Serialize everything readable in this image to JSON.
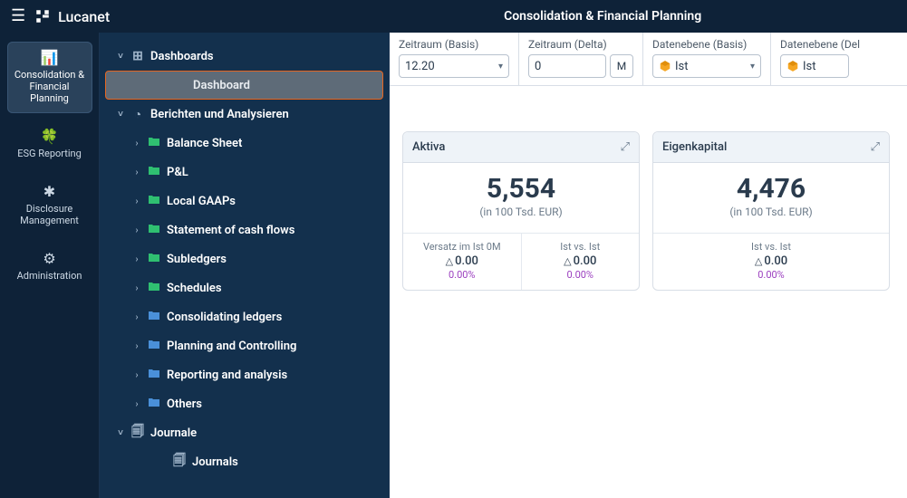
{
  "header": {
    "brand": "Lucanet",
    "title": "Consolidation & Financial Planning"
  },
  "rail": {
    "items": [
      {
        "label": "Consolidation & Financial Planning",
        "icon": "📊",
        "icon_name": "chart-bar-icon",
        "active": true
      },
      {
        "label": "ESG Reporting",
        "icon": "🍀",
        "icon_name": "leaf-icon",
        "active": false
      },
      {
        "label": "Disclosure Management",
        "icon": "✱",
        "icon_name": "asterisk-icon",
        "active": false
      },
      {
        "label": "Administration",
        "icon": "⚙",
        "icon_name": "gear-icon",
        "active": false
      }
    ]
  },
  "tree": {
    "nodes": [
      {
        "label": "Dashboards",
        "level": 0,
        "toggle": "down",
        "icon": "⊞",
        "icon_name": "grid-icon",
        "color": "muted"
      },
      {
        "label": "Dashboard",
        "level": 2,
        "toggle": "",
        "icon": "",
        "selected": true
      },
      {
        "label": "Berichten und Analysieren",
        "level": 0,
        "toggle": "down",
        "icon": "◔",
        "icon_name": "pie-icon",
        "color": "muted"
      },
      {
        "label": "Balance Sheet",
        "level": 1,
        "toggle": "right",
        "icon": "■",
        "icon_name": "folder-icon",
        "color": "green"
      },
      {
        "label": "P&L",
        "level": 1,
        "toggle": "right",
        "icon": "■",
        "icon_name": "folder-icon",
        "color": "green"
      },
      {
        "label": "Local GAAPs",
        "level": 1,
        "toggle": "right",
        "icon": "■",
        "icon_name": "folder-icon",
        "color": "green"
      },
      {
        "label": "Statement of cash flows",
        "level": 1,
        "toggle": "right",
        "icon": "■",
        "icon_name": "folder-icon",
        "color": "green"
      },
      {
        "label": "Subledgers",
        "level": 1,
        "toggle": "right",
        "icon": "■",
        "icon_name": "folder-icon",
        "color": "green"
      },
      {
        "label": "Schedules",
        "level": 1,
        "toggle": "right",
        "icon": "■",
        "icon_name": "folder-icon",
        "color": "green"
      },
      {
        "label": "Consolidating ledgers",
        "level": 1,
        "toggle": "right",
        "icon": "■",
        "icon_name": "folder-icon",
        "color": "blue"
      },
      {
        "label": "Planning and Controlling",
        "level": 1,
        "toggle": "right",
        "icon": "■",
        "icon_name": "folder-icon",
        "color": "blue"
      },
      {
        "label": "Reporting and analysis",
        "level": 1,
        "toggle": "right",
        "icon": "■",
        "icon_name": "folder-icon",
        "color": "blue"
      },
      {
        "label": "Others",
        "level": 1,
        "toggle": "right",
        "icon": "■",
        "icon_name": "folder-icon",
        "color": "blue"
      },
      {
        "label": "Journale",
        "level": 0,
        "toggle": "down",
        "icon": "🗐",
        "icon_name": "journal-icon",
        "color": "muted"
      },
      {
        "label": "Journals",
        "level": 2,
        "toggle": "",
        "icon": "🗐",
        "icon_name": "journal-icon",
        "color": "muted"
      }
    ]
  },
  "filters": [
    {
      "label": "Zeitraum (Basis)",
      "value": "12.20",
      "chevron": true
    },
    {
      "label": "Zeitraum (Delta)",
      "value": "0",
      "unit": "M"
    },
    {
      "label": "Datenebene (Basis)",
      "value": "Ist",
      "chevron": true,
      "cube": true
    },
    {
      "label": "Datenebene (Del",
      "value": "Ist",
      "cube": true
    }
  ],
  "cards": [
    {
      "title": "Aktiva",
      "value": "5,554",
      "unit": "(in 100 Tsd. EUR)",
      "cells": [
        {
          "label": "Versatz im Ist 0M",
          "delta": "0.00",
          "pct": "0.00%"
        },
        {
          "label": "Ist vs. Ist",
          "delta": "0.00",
          "pct": "0.00%"
        }
      ]
    },
    {
      "title": "Eigenkapital",
      "value": "4,476",
      "unit": "(in 100 Tsd. EUR)",
      "cells": [
        {
          "label": "Ist vs. Ist",
          "delta": "0.00",
          "pct": "0.00%"
        }
      ]
    }
  ],
  "colors": {
    "topbar_bg": "#0e2238",
    "tree_bg": "#13304d",
    "selection_border": "#e6651f",
    "folder_green": "#2fbf71",
    "folder_blue": "#4a90d9",
    "pct_color": "#9b3fbf"
  }
}
